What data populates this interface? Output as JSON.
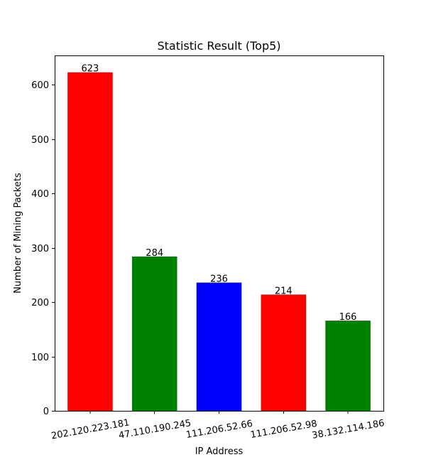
{
  "chart_data": {
    "type": "bar",
    "title": "Statistic Result (Top5)",
    "xlabel": "IP Address",
    "ylabel": "Number of Mining Packets",
    "categories": [
      "202.120.223.181",
      "47.110.190.245",
      "111.206.52.66",
      "111.206.52.98",
      "38.132.114.186"
    ],
    "values": [
      623,
      284,
      236,
      214,
      166
    ],
    "bar_colors": [
      "#ff0000",
      "#008000",
      "#0000ff",
      "#ff0000",
      "#008000"
    ],
    "data_labels": [
      "623",
      "284",
      "236",
      "214",
      "166"
    ],
    "ylim": [
      0,
      654
    ],
    "yticks": [
      0,
      100,
      200,
      300,
      400,
      500,
      600
    ],
    "ytick_labels": [
      "0",
      "100",
      "200",
      "300",
      "400",
      "500",
      "600"
    ],
    "xtick_rotation_deg": -10,
    "grid": false,
    "legend": "none"
  }
}
